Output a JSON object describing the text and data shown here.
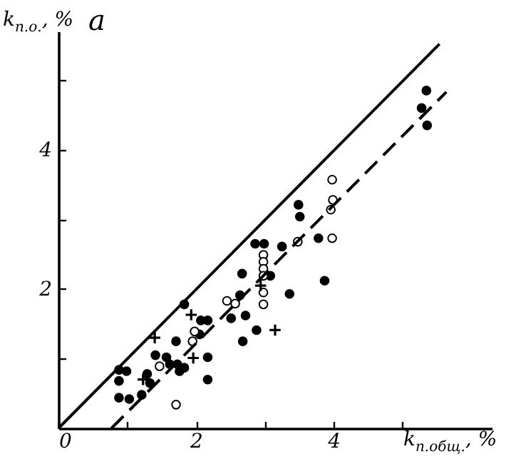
{
  "chart_data": {
    "type": "scatter",
    "title": "а",
    "xlabel": "k$_{п.общ.}$, %",
    "ylabel": "k$_{п.о.}$, %",
    "xlim": [
      0,
      6.3
    ],
    "ylim": [
      0,
      5.7
    ],
    "xticks": [
      0,
      {
        "value": 1,
        "label": null
      },
      2,
      {
        "value": 3,
        "label": null
      },
      4,
      {
        "value": 5,
        "label": null
      }
    ],
    "yticks": [
      {
        "value": 1,
        "label": null
      },
      2,
      {
        "value": 3,
        "label": null
      },
      4,
      {
        "value": 5,
        "label": null
      }
    ],
    "grid": false,
    "series": [
      {
        "marker": "circle",
        "color": "#000000",
        "x": [
          0.88,
          0.99,
          0.88,
          0.88,
          1.03,
          1.21,
          1.29,
          1.33,
          1.41,
          1.57,
          1.62,
          1.71,
          1.73,
          1.76,
          1.83,
          1.83,
          2.07,
          2.17,
          2.17,
          2.17,
          2.05,
          2.51,
          2.67,
          2.72,
          2.68,
          2.64,
          2.86,
          2.88,
          2.99,
          3.25,
          3.78,
          3.08,
          3.87,
          3.36,
          5.35,
          5.28,
          5.36,
          3.49,
          3.51
        ],
        "values": [
          0.84,
          0.82,
          0.68,
          0.44,
          0.42,
          0.48,
          0.78,
          0.65,
          1.05,
          1.02,
          0.92,
          1.25,
          0.92,
          0.82,
          0.87,
          1.78,
          1.55,
          1.55,
          1.02,
          0.7,
          1.35,
          1.58,
          2.22,
          1.62,
          1.25,
          1.91,
          2.65,
          1.41,
          2.65,
          2.61,
          2.73,
          2.19,
          2.12,
          1.93,
          4.85,
          4.6,
          4.35,
          3.21,
          3.04
        ]
      },
      {
        "marker": "circle",
        "color": "#ffffff",
        "x": [
          3.98,
          3.99,
          3.96,
          3.98,
          3.48,
          2.98,
          2.98,
          2.98,
          2.98,
          2.98,
          2.98,
          1.71,
          1.47,
          1.95,
          1.98,
          2.45,
          2.57
        ],
        "values": [
          3.57,
          3.28,
          3.14,
          2.73,
          2.68,
          2.49,
          2.39,
          2.29,
          2.19,
          1.95,
          1.78,
          0.34,
          0.89,
          1.25,
          1.39,
          1.83,
          1.79
        ]
      },
      {
        "marker": "cross",
        "color": "#000000",
        "x": [
          1.4,
          1.93,
          1.96,
          1.23,
          3.15,
          2.94
        ],
        "values": [
          1.3,
          1.63,
          1.01,
          0.7,
          1.41,
          2.05
        ]
      },
      {
        "type": "line",
        "line_style": "solid",
        "color": "#000000",
        "x": [
          0,
          5.54
        ],
        "values": [
          0,
          5.52
        ]
      },
      {
        "type": "line",
        "line_style": "dashed",
        "color": "#000000",
        "x": [
          0.77,
          5.64
        ],
        "values": [
          0,
          4.83
        ]
      }
    ]
  }
}
